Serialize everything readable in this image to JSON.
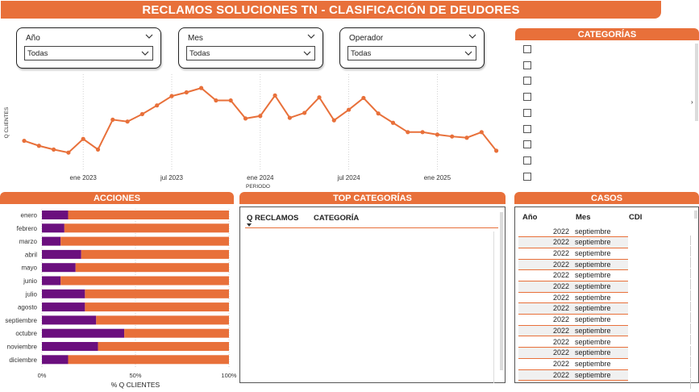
{
  "header": {
    "title": "RECLAMOS SOLUCIONES TN - CLASIFICACIÓN DE DEUDORES"
  },
  "filters": [
    {
      "label": "Año",
      "value": "Todas"
    },
    {
      "label": "Mes",
      "value": "Todas"
    },
    {
      "label": "Operador",
      "value": "Todas"
    }
  ],
  "categorias": {
    "title": "CATEGORÍAS",
    "checkbox_count": 9
  },
  "line_chart": {
    "chart_data": {
      "type": "line",
      "ylabel": "Q CLIENTES",
      "xlabel": "PERIODO",
      "x_ticks": [
        "ene 2023",
        "jul 2023",
        "ene 2024",
        "jul 2024",
        "ene 2025"
      ],
      "x_start": "2022-09",
      "values": [
        46,
        38,
        32,
        27,
        49,
        32,
        80,
        77,
        89,
        103,
        118,
        124,
        131,
        111,
        111,
        82,
        86,
        119,
        83,
        91,
        116,
        79,
        96,
        115,
        90,
        75,
        60,
        60,
        56,
        53,
        51,
        60,
        30
      ],
      "color": "#e8703a"
    }
  },
  "acciones": {
    "title": "ACCIONES",
    "chart_data": {
      "type": "bar",
      "orientation": "horizontal",
      "stacked_percent": true,
      "categories": [
        "enero",
        "febrero",
        "marzo",
        "abril",
        "mayo",
        "junio",
        "julio",
        "agosto",
        "septiembre",
        "octubre",
        "noviembre",
        "diciembre"
      ],
      "series": [
        {
          "color": "#6b0f7e",
          "values": [
            14,
            12,
            10,
            21,
            18,
            10,
            23,
            23,
            29,
            44,
            30,
            14
          ]
        },
        {
          "color": "#e8703a",
          "values": [
            86,
            88,
            90,
            79,
            82,
            90,
            77,
            77,
            71,
            56,
            70,
            86
          ]
        }
      ],
      "x_ticks": [
        "0%",
        "50%",
        "100%"
      ],
      "xlabel": "% Q CLIENTES"
    }
  },
  "top_categorias": {
    "title": "TOP CATEGORÍAS",
    "columns": [
      "Q RECLAMOS",
      "CATEGORÍA"
    ]
  },
  "casos": {
    "title": "CASOS",
    "columns": [
      "Año",
      "Mes",
      "CDI"
    ],
    "rows": [
      {
        "anio": "2022",
        "mes": "septiembre"
      },
      {
        "anio": "2022",
        "mes": "septiembre"
      },
      {
        "anio": "2022",
        "mes": "septiembre"
      },
      {
        "anio": "2022",
        "mes": "septiembre"
      },
      {
        "anio": "2022",
        "mes": "septiembre"
      },
      {
        "anio": "2022",
        "mes": "septiembre"
      },
      {
        "anio": "2022",
        "mes": "septiembre"
      },
      {
        "anio": "2022",
        "mes": "septiembre"
      },
      {
        "anio": "2022",
        "mes": "septiembre"
      },
      {
        "anio": "2022",
        "mes": "septiembre"
      },
      {
        "anio": "2022",
        "mes": "septiembre"
      },
      {
        "anio": "2022",
        "mes": "septiembre"
      },
      {
        "anio": "2022",
        "mes": "septiembre"
      },
      {
        "anio": "2022",
        "mes": "septiembre"
      }
    ]
  }
}
